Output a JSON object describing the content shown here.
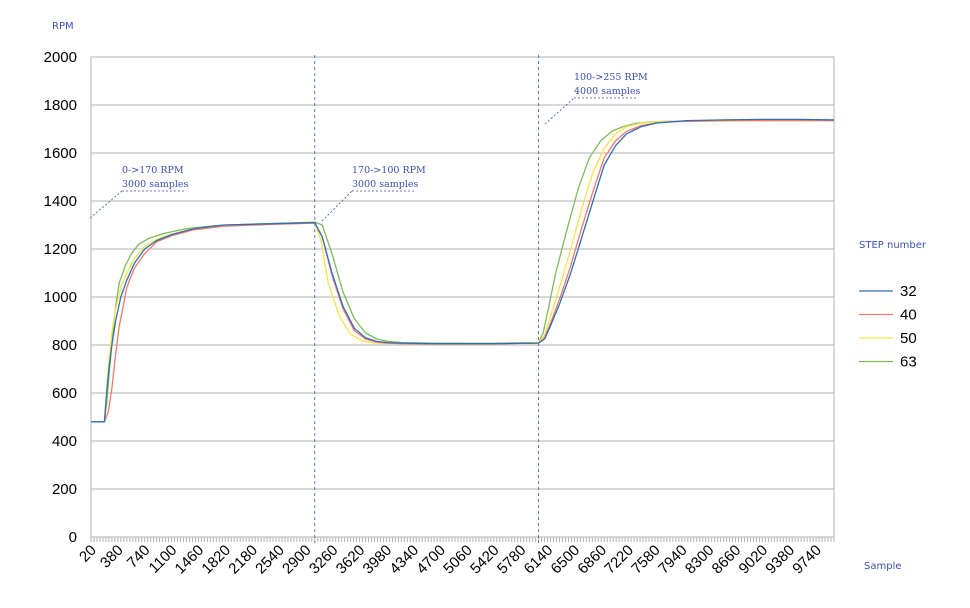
{
  "chart_data": {
    "type": "line",
    "title": "",
    "ylabel": "RPM",
    "xlabel": "Sample",
    "ylim": [
      0,
      2000
    ],
    "y_ticks": [
      0,
      200,
      400,
      600,
      800,
      1000,
      1200,
      1400,
      1600,
      1800,
      2000
    ],
    "xlim": [
      20,
      9980
    ],
    "x_ticks": [
      20,
      380,
      740,
      1100,
      1460,
      1820,
      2180,
      2540,
      2900,
      3260,
      3620,
      3980,
      4340,
      4700,
      5060,
      5420,
      5780,
      6140,
      6500,
      6860,
      7220,
      7580,
      7940,
      8300,
      8660,
      9020,
      9380,
      9740
    ],
    "grid": true,
    "legend": {
      "title": "STEP number",
      "placement": "right"
    },
    "annotations": [
      {
        "lines": [
          "0->170 RPM",
          "3000 samples"
        ],
        "x": 20
      },
      {
        "lines": [
          "170->100 RPM",
          "3000 samples"
        ],
        "x": 3020
      },
      {
        "lines": [
          "100->255 RPM",
          "4000 samples"
        ],
        "x": 6020
      }
    ],
    "markers_x": [
      3020,
      6020
    ],
    "series": [
      {
        "name": "32",
        "color": "#2f6fba",
        "x": [
          20,
          200,
          230,
          260,
          300,
          350,
          420,
          500,
          600,
          740,
          900,
          1100,
          1400,
          1800,
          2400,
          3020,
          3120,
          3250,
          3400,
          3550,
          3700,
          3850,
          4000,
          4200,
          4600,
          5400,
          6020,
          6100,
          6180,
          6300,
          6450,
          6600,
          6750,
          6900,
          7050,
          7200,
          7400,
          7600,
          7800,
          8000,
          8500,
          9000,
          9500,
          9980
        ],
        "y": [
          480,
          480,
          600,
          700,
          800,
          900,
          1000,
          1070,
          1140,
          1200,
          1235,
          1260,
          1285,
          1300,
          1305,
          1310,
          1250,
          1100,
          960,
          870,
          830,
          815,
          810,
          808,
          806,
          806,
          808,
          825,
          880,
          970,
          1100,
          1250,
          1400,
          1550,
          1630,
          1680,
          1710,
          1725,
          1730,
          1735,
          1738,
          1740,
          1740,
          1738
        ]
      },
      {
        "name": "40",
        "color": "#f4786b",
        "x": [
          20,
          200,
          250,
          300,
          350,
          400,
          450,
          500,
          600,
          740,
          900,
          1100,
          1400,
          1800,
          2400,
          3020,
          3120,
          3250,
          3400,
          3550,
          3700,
          3850,
          4000,
          4200,
          4600,
          5400,
          6020,
          6100,
          6180,
          6300,
          6450,
          6600,
          6750,
          6900,
          7050,
          7200,
          7400,
          7600,
          7800,
          8000,
          8500,
          9000,
          9500,
          9980
        ],
        "y": [
          480,
          480,
          520,
          620,
          760,
          880,
          960,
          1040,
          1120,
          1180,
          1230,
          1255,
          1280,
          1295,
          1302,
          1308,
          1250,
          1090,
          950,
          860,
          825,
          812,
          808,
          806,
          805,
          805,
          808,
          830,
          890,
          990,
          1130,
          1290,
          1440,
          1580,
          1650,
          1690,
          1715,
          1725,
          1730,
          1732,
          1735,
          1735,
          1735,
          1735
        ]
      },
      {
        "name": "50",
        "color": "#f6e24a",
        "x": [
          20,
          200,
          230,
          260,
          300,
          350,
          420,
          500,
          600,
          740,
          900,
          1100,
          1400,
          1800,
          2400,
          3020,
          3100,
          3200,
          3350,
          3500,
          3650,
          3800,
          3950,
          4200,
          4600,
          5400,
          6020,
          6100,
          6180,
          6300,
          6450,
          6600,
          6750,
          6900,
          7050,
          7200,
          7400,
          7600,
          7800,
          8000,
          8500,
          9000,
          9500,
          9980
        ],
        "y": [
          480,
          480,
          620,
          730,
          850,
          950,
          1040,
          1100,
          1160,
          1210,
          1240,
          1262,
          1285,
          1298,
          1305,
          1308,
          1240,
          1060,
          920,
          845,
          818,
          810,
          807,
          806,
          805,
          805,
          810,
          840,
          920,
          1040,
          1200,
          1370,
          1520,
          1620,
          1680,
          1710,
          1725,
          1730,
          1732,
          1733,
          1733,
          1735,
          1735,
          1735
        ]
      },
      {
        "name": "63",
        "color": "#7dba5a",
        "x": [
          20,
          200,
          230,
          270,
          310,
          350,
          400,
          480,
          560,
          660,
          800,
          1000,
          1300,
          1700,
          2300,
          3020,
          3120,
          3250,
          3400,
          3550,
          3700,
          3850,
          4000,
          4200,
          4600,
          5400,
          6020,
          6080,
          6150,
          6250,
          6400,
          6550,
          6700,
          6850,
          7000,
          7150,
          7350,
          7550,
          7800,
          8000,
          8500,
          9000,
          9500,
          9980
        ],
        "y": [
          480,
          480,
          560,
          700,
          840,
          960,
          1060,
          1130,
          1180,
          1220,
          1245,
          1265,
          1285,
          1298,
          1305,
          1312,
          1300,
          1180,
          1020,
          910,
          850,
          825,
          815,
          810,
          808,
          807,
          810,
          850,
          950,
          1100,
          1280,
          1450,
          1580,
          1650,
          1690,
          1710,
          1725,
          1730,
          1732,
          1733,
          1735,
          1735,
          1737,
          1735
        ]
      }
    ]
  }
}
